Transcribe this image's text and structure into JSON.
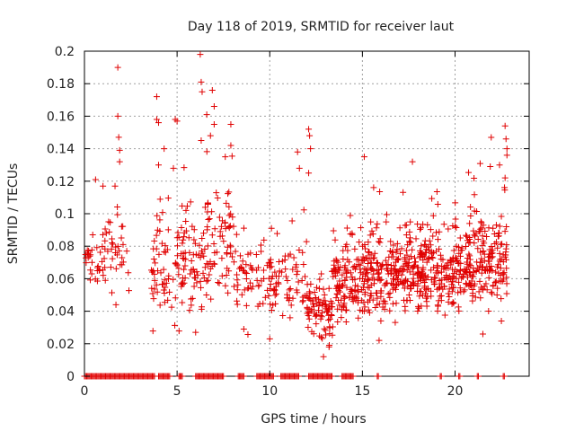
{
  "chart_data": {
    "type": "scatter",
    "title": "Day 118 of 2019, SRMTID for receiver laut",
    "xlabel": "GPS time / hours",
    "ylabel": "SRMTID / TECUs",
    "xlim": [
      0,
      24
    ],
    "ylim": [
      0,
      0.2
    ],
    "x_ticks": [
      0,
      5,
      10,
      15,
      20
    ],
    "y_ticks": [
      0,
      0.02,
      0.04,
      0.06,
      0.08,
      0.1,
      0.12,
      0.14,
      0.16,
      0.18,
      0.2
    ],
    "x_tick_labels": [
      "0",
      "5",
      "10",
      "15",
      "20"
    ],
    "y_tick_labels": [
      "0",
      "0.02",
      "0.04",
      "0.06",
      "0.08",
      "0.1",
      "0.12",
      "0.14",
      "0.16",
      "0.18",
      "0.2"
    ],
    "grid": true,
    "marker": "plus",
    "colors": {
      "points": "#e00000",
      "grid": "#a0a0a0",
      "axes": "#000000"
    },
    "series": [
      {
        "name": "SRMTID",
        "segments": [
          {
            "x_start": 0.05,
            "x_end": 0.9,
            "y_base": 0.07,
            "y_spread": 0.012,
            "count": 26
          },
          {
            "x_start": 0.9,
            "x_end": 2.4,
            "y_base": 0.075,
            "y_spread": 0.02,
            "count": 42
          },
          {
            "x_start": 3.6,
            "x_end": 5.0,
            "y_base": 0.065,
            "y_spread": 0.025,
            "count": 55
          },
          {
            "x_start": 5.0,
            "x_end": 6.6,
            "y_base": 0.065,
            "y_spread": 0.025,
            "count": 80
          },
          {
            "x_start": 6.6,
            "x_end": 8.0,
            "y_base": 0.08,
            "y_spread": 0.028,
            "count": 65
          },
          {
            "x_start": 8.0,
            "x_end": 10.0,
            "y_base": 0.06,
            "y_spread": 0.018,
            "count": 60
          },
          {
            "x_start": 10.0,
            "x_end": 12.0,
            "y_base": 0.058,
            "y_spread": 0.018,
            "count": 70
          },
          {
            "x_start": 12.0,
            "x_end": 13.4,
            "y_base": 0.038,
            "y_spread": 0.012,
            "count": 85
          },
          {
            "x_start": 13.4,
            "x_end": 15.0,
            "y_base": 0.058,
            "y_spread": 0.018,
            "count": 120
          },
          {
            "x_start": 15.0,
            "x_end": 17.0,
            "y_base": 0.062,
            "y_spread": 0.02,
            "count": 170
          },
          {
            "x_start": 17.0,
            "x_end": 19.0,
            "y_base": 0.065,
            "y_spread": 0.02,
            "count": 170
          },
          {
            "x_start": 19.0,
            "x_end": 21.0,
            "y_base": 0.063,
            "y_spread": 0.018,
            "count": 160
          },
          {
            "x_start": 21.0,
            "x_end": 22.8,
            "y_base": 0.07,
            "y_spread": 0.022,
            "count": 140
          }
        ],
        "points": [
          {
            "x": 1.8,
            "y": 0.19
          },
          {
            "x": 1.8,
            "y": 0.16
          },
          {
            "x": 1.85,
            "y": 0.147
          },
          {
            "x": 1.9,
            "y": 0.139
          },
          {
            "x": 1.9,
            "y": 0.132
          },
          {
            "x": 1.65,
            "y": 0.117
          },
          {
            "x": 0.6,
            "y": 0.121
          },
          {
            "x": 1.0,
            "y": 0.117
          },
          {
            "x": 3.9,
            "y": 0.172
          },
          {
            "x": 3.9,
            "y": 0.158
          },
          {
            "x": 4.0,
            "y": 0.156
          },
          {
            "x": 4.9,
            "y": 0.158
          },
          {
            "x": 5.0,
            "y": 0.157
          },
          {
            "x": 4.0,
            "y": 0.13
          },
          {
            "x": 4.3,
            "y": 0.14
          },
          {
            "x": 4.8,
            "y": 0.128
          },
          {
            "x": 6.25,
            "y": 0.198
          },
          {
            "x": 6.3,
            "y": 0.181
          },
          {
            "x": 6.35,
            "y": 0.175
          },
          {
            "x": 6.6,
            "y": 0.161
          },
          {
            "x": 6.9,
            "y": 0.176
          },
          {
            "x": 7.0,
            "y": 0.166
          },
          {
            "x": 7.0,
            "y": 0.155
          },
          {
            "x": 6.3,
            "y": 0.145
          },
          {
            "x": 6.8,
            "y": 0.148
          },
          {
            "x": 7.9,
            "y": 0.155
          },
          {
            "x": 7.9,
            "y": 0.142
          },
          {
            "x": 7.6,
            "y": 0.135
          },
          {
            "x": 12.1,
            "y": 0.152
          },
          {
            "x": 12.15,
            "y": 0.148
          },
          {
            "x": 12.2,
            "y": 0.14
          },
          {
            "x": 11.5,
            "y": 0.138
          },
          {
            "x": 11.6,
            "y": 0.128
          },
          {
            "x": 12.1,
            "y": 0.125
          },
          {
            "x": 15.1,
            "y": 0.135
          },
          {
            "x": 17.7,
            "y": 0.132
          },
          {
            "x": 22.7,
            "y": 0.154
          },
          {
            "x": 22.75,
            "y": 0.146
          },
          {
            "x": 22.8,
            "y": 0.14
          },
          {
            "x": 22.8,
            "y": 0.136
          },
          {
            "x": 21.9,
            "y": 0.129
          },
          {
            "x": 22.4,
            "y": 0.13
          },
          {
            "x": 22.7,
            "y": 0.122
          },
          {
            "x": 1.7,
            "y": 0.044
          },
          {
            "x": 12.9,
            "y": 0.012
          },
          {
            "x": 13.2,
            "y": 0.018
          },
          {
            "x": 15.9,
            "y": 0.022
          },
          {
            "x": 21.5,
            "y": 0.026
          },
          {
            "x": 22.5,
            "y": 0.034
          },
          {
            "x": 6.0,
            "y": 0.027
          },
          {
            "x": 8.6,
            "y": 0.029
          },
          {
            "x": 10.0,
            "y": 0.023
          }
        ],
        "zero_ranges": [
          [
            0.0,
            3.8
          ],
          [
            4.0,
            4.6
          ],
          [
            5.1,
            5.3
          ],
          [
            6.0,
            7.5
          ],
          [
            8.3,
            8.6
          ],
          [
            9.3,
            10.2
          ],
          [
            10.6,
            11.6
          ],
          [
            12.1,
            13.4
          ],
          [
            13.9,
            14.5
          ],
          [
            15.8,
            15.9
          ],
          [
            19.2,
            19.3
          ],
          [
            20.2,
            20.3
          ],
          [
            21.2,
            21.3
          ],
          [
            22.6,
            22.7
          ]
        ]
      }
    ]
  }
}
